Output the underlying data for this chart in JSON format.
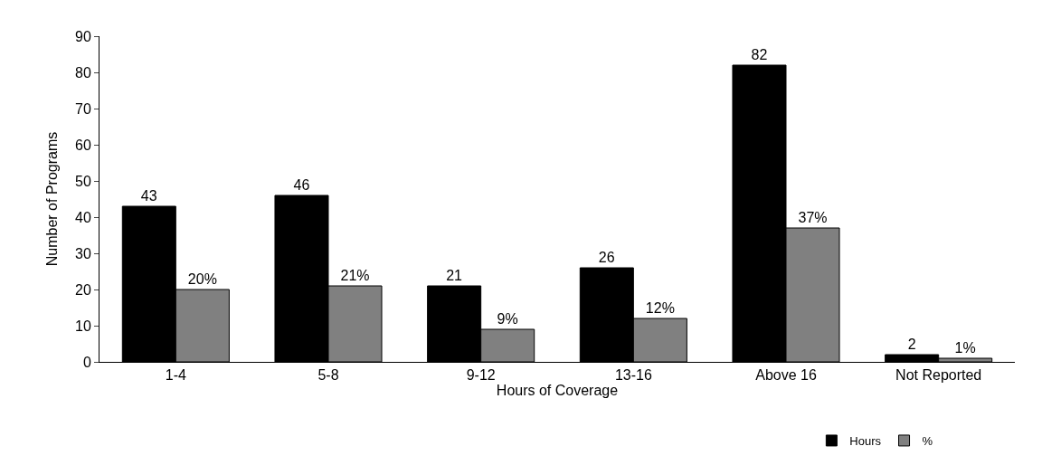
{
  "chart_data": {
    "type": "bar",
    "xlabel": "Hours of Coverage",
    "ylabel": "Number of Programs",
    "categories": [
      "1-4",
      "5-8",
      "9-12",
      "13-16",
      "Above 16",
      "Not Reported"
    ],
    "series": [
      {
        "name": "Hours",
        "color": "#000000",
        "values": [
          43,
          46,
          21,
          26,
          82,
          2
        ],
        "value_labels": [
          "43",
          "46",
          "21",
          "26",
          "82",
          "2"
        ]
      },
      {
        "name": "%",
        "color": "#808080",
        "values": [
          20,
          21,
          9,
          12,
          37,
          1
        ],
        "value_labels": [
          "20%",
          "21%",
          "9%",
          "12%",
          "37%",
          "1%"
        ]
      }
    ],
    "ylim": [
      0,
      90
    ],
    "yticks": [
      0,
      10,
      20,
      30,
      40,
      50,
      60,
      70,
      80,
      90
    ],
    "grid": false,
    "legend": "bottom right"
  }
}
